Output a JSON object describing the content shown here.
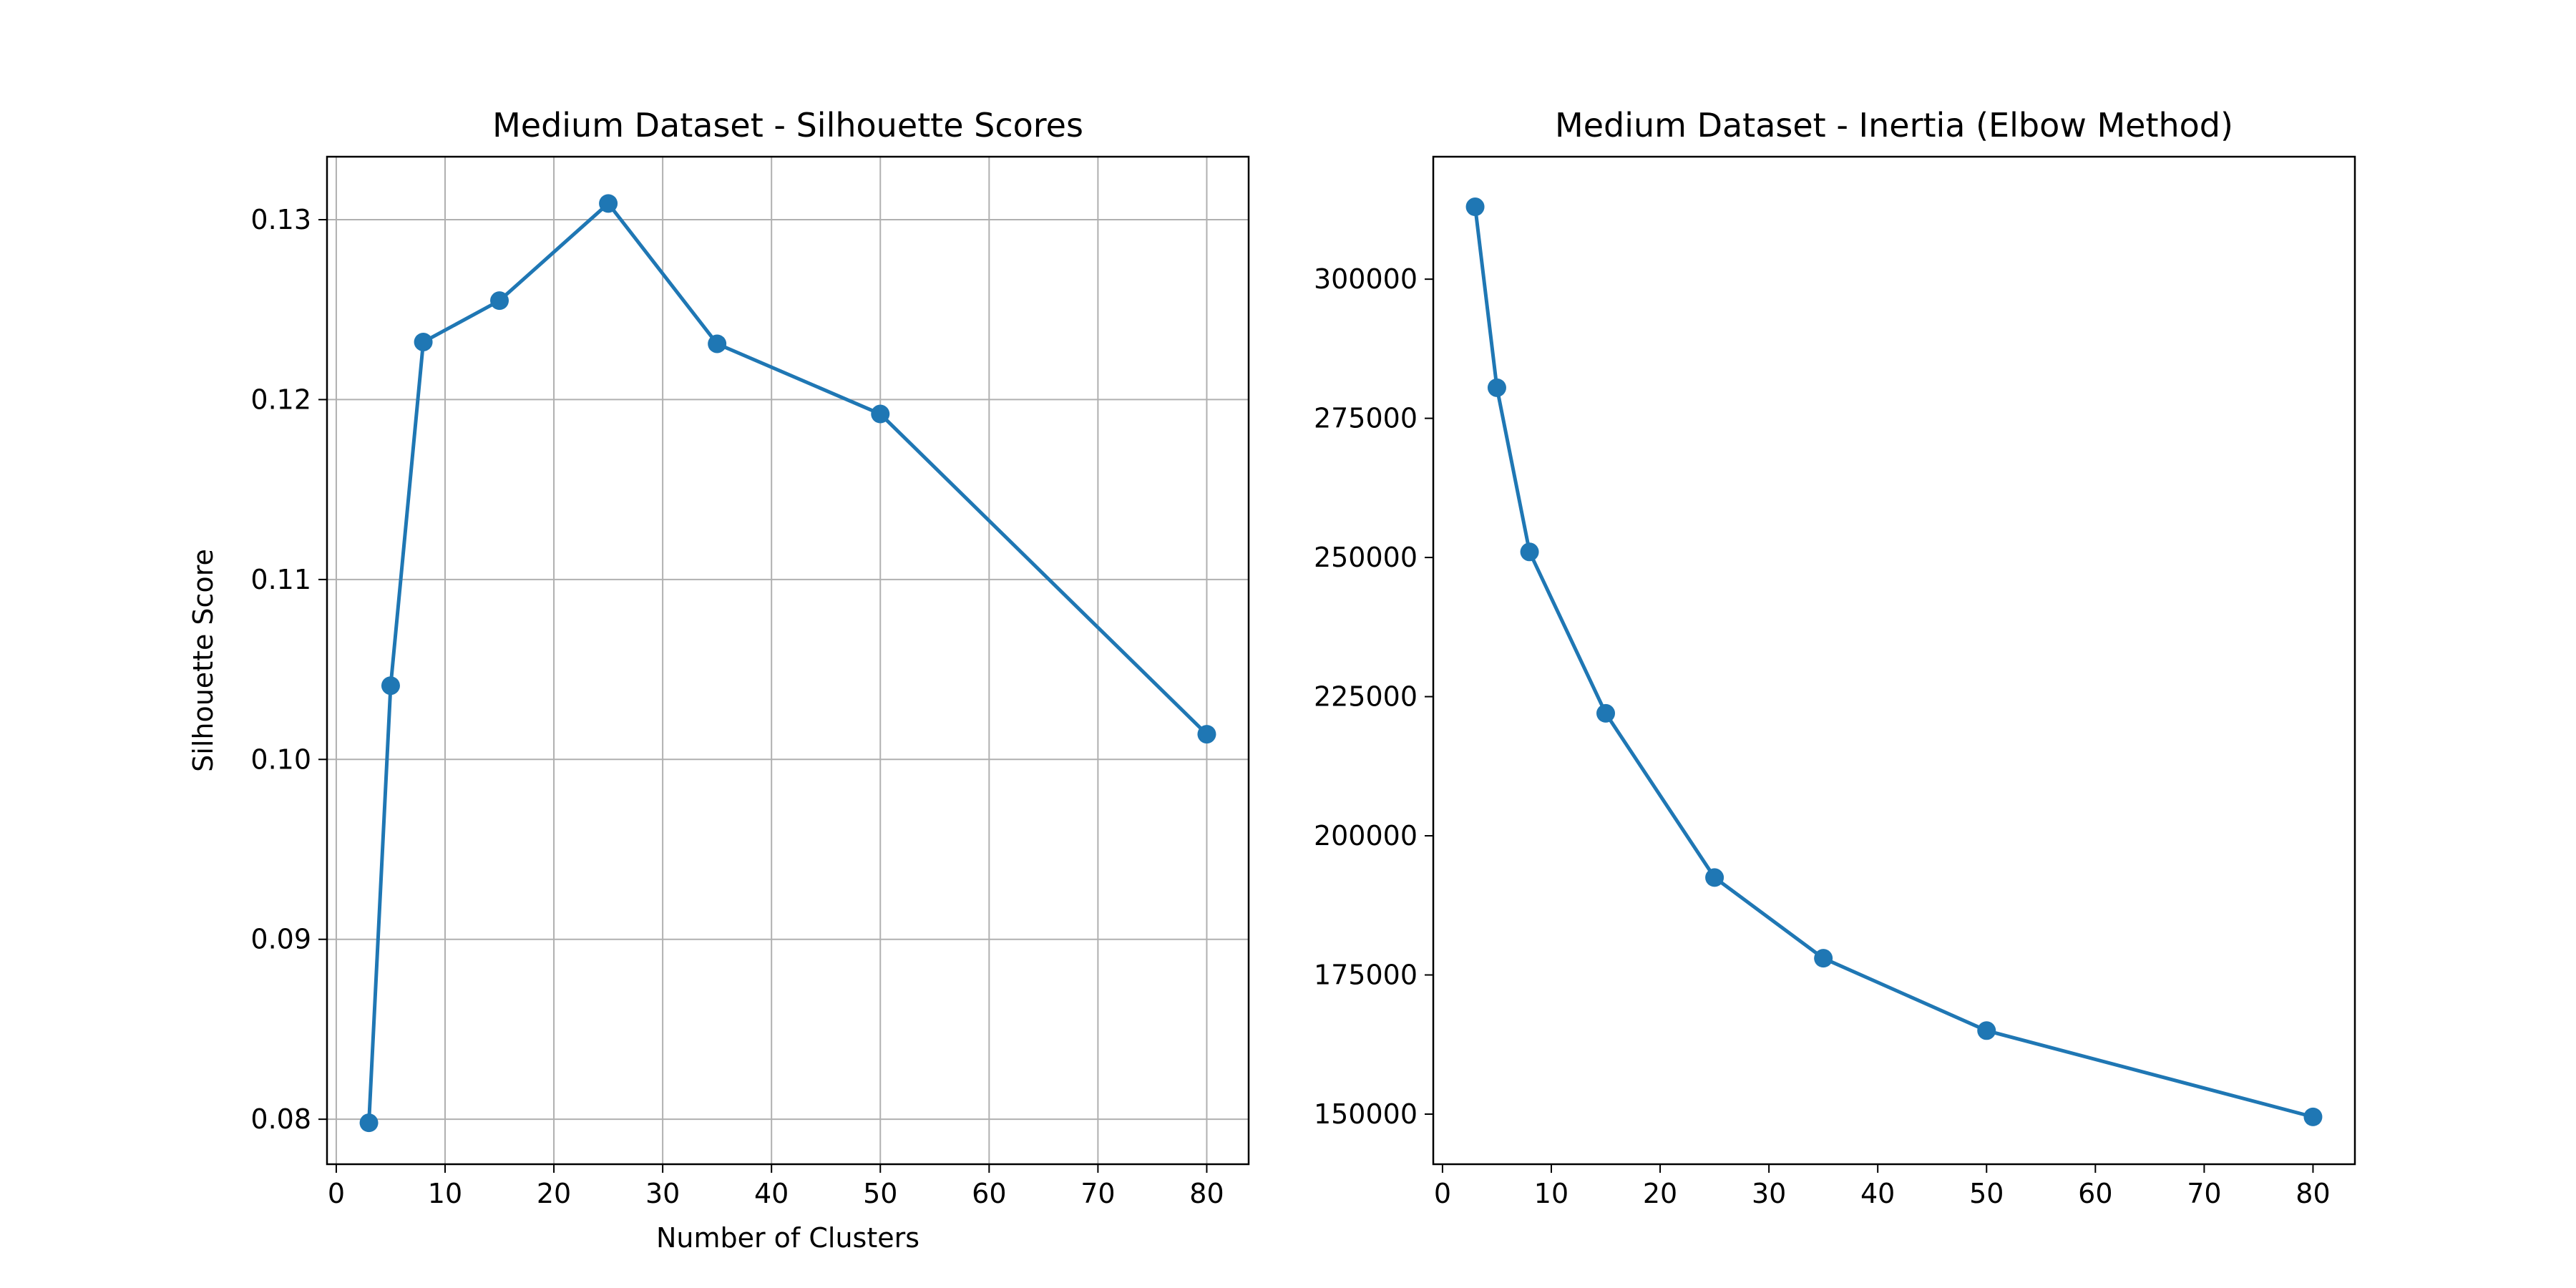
{
  "chart_data": [
    {
      "type": "line",
      "title": "Medium Dataset - Silhouette Scores",
      "xlabel": "Number of Clusters",
      "ylabel": "Silhouette Score",
      "grid": true,
      "xlim": [
        -0.85,
        83.85
      ],
      "ylim": [
        0.0775,
        0.1335
      ],
      "xticks": [
        0,
        10,
        20,
        30,
        40,
        50,
        60,
        70,
        80
      ],
      "xtick_labels": [
        "0",
        "10",
        "20",
        "30",
        "40",
        "50",
        "60",
        "70",
        "80"
      ],
      "yticks": [
        0.08,
        0.09,
        0.1,
        0.11,
        0.12,
        0.13
      ],
      "ytick_labels": [
        "0.08",
        "0.09",
        "0.10",
        "0.11",
        "0.12",
        "0.13"
      ],
      "color": "#1f77b4",
      "marker": "circle",
      "x": [
        3,
        5,
        8,
        15,
        25,
        35,
        50,
        80
      ],
      "y": [
        0.0798,
        0.1041,
        0.1232,
        0.1255,
        0.1309,
        0.1231,
        0.1192,
        0.1014
      ]
    },
    {
      "type": "line",
      "title": "Medium Dataset - Inertia (Elbow Method)",
      "xlabel": "",
      "ylabel": "",
      "grid": false,
      "xlim": [
        -0.85,
        83.85
      ],
      "ylim": [
        141000,
        322000
      ],
      "xticks": [
        0,
        10,
        20,
        30,
        40,
        50,
        60,
        70,
        80
      ],
      "xtick_labels": [
        "0",
        "10",
        "20",
        "30",
        "40",
        "50",
        "60",
        "70",
        "80"
      ],
      "yticks": [
        150000,
        175000,
        200000,
        225000,
        250000,
        275000,
        300000
      ],
      "ytick_labels": [
        "150000",
        "175000",
        "200000",
        "225000",
        "250000",
        "275000",
        "300000"
      ],
      "color": "#1f77b4",
      "marker": "circle",
      "x": [
        3,
        5,
        8,
        15,
        25,
        35,
        50,
        80
      ],
      "y": [
        313000,
        280500,
        251000,
        222000,
        192500,
        178000,
        165000,
        149500
      ]
    }
  ]
}
